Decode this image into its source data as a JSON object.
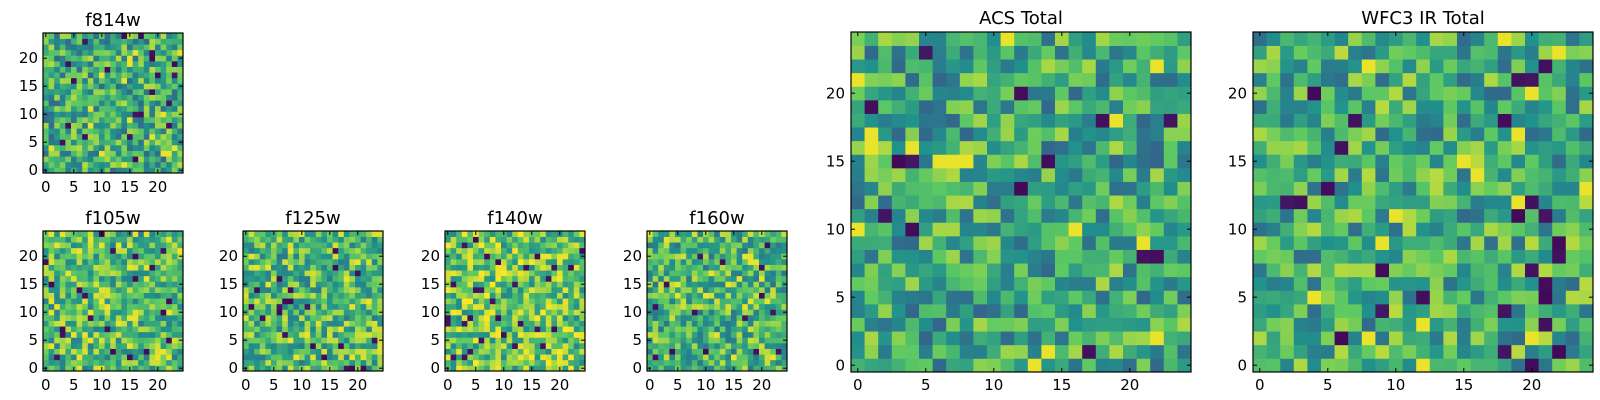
{
  "colors": {
    "colormap": "viridis",
    "stops": [
      "#440154",
      "#3b528b",
      "#21918c",
      "#5ec962",
      "#fde725"
    ]
  },
  "chart_data": [
    {
      "type": "heatmap",
      "title": "f814w",
      "grid": false,
      "shape": [
        25,
        25
      ],
      "value_range": [
        0,
        1
      ],
      "mean_level": 0.62,
      "xlim": [
        -0.5,
        24.5
      ],
      "ylim": [
        -0.5,
        24.5
      ],
      "xticks": [
        0,
        5,
        10,
        15,
        20
      ],
      "yticks": [
        0,
        5,
        10,
        15,
        20
      ],
      "xticklabels": [
        "0",
        "5",
        "10",
        "15",
        "20"
      ],
      "yticklabels": [
        "0",
        "5",
        "10",
        "15",
        "20"
      ]
    },
    {
      "type": "heatmap",
      "title": "f105w",
      "grid": false,
      "shape": [
        25,
        25
      ],
      "value_range": [
        0,
        1
      ],
      "mean_level": 0.7,
      "xlim": [
        -0.5,
        24.5
      ],
      "ylim": [
        -0.5,
        24.5
      ],
      "xticks": [
        0,
        5,
        10,
        15,
        20
      ],
      "yticks": [
        0,
        5,
        10,
        15,
        20
      ],
      "xticklabels": [
        "0",
        "5",
        "10",
        "15",
        "20"
      ],
      "yticklabels": [
        "0",
        "5",
        "10",
        "15",
        "20"
      ]
    },
    {
      "type": "heatmap",
      "title": "f125w",
      "grid": false,
      "shape": [
        25,
        25
      ],
      "value_range": [
        0,
        1
      ],
      "mean_level": 0.68,
      "xlim": [
        -0.5,
        24.5
      ],
      "ylim": [
        -0.5,
        24.5
      ],
      "xticks": [
        0,
        5,
        10,
        15,
        20
      ],
      "yticks": [
        0,
        5,
        10,
        15,
        20
      ],
      "xticklabels": [
        "0",
        "5",
        "10",
        "15",
        "20"
      ],
      "yticklabels": [
        "0",
        "5",
        "10",
        "15",
        "20"
      ]
    },
    {
      "type": "heatmap",
      "title": "f140w",
      "grid": false,
      "shape": [
        25,
        25
      ],
      "value_range": [
        0,
        1
      ],
      "mean_level": 0.74,
      "xlim": [
        -0.5,
        24.5
      ],
      "ylim": [
        -0.5,
        24.5
      ],
      "xticks": [
        0,
        5,
        10,
        15,
        20
      ],
      "yticks": [
        0,
        5,
        10,
        15,
        20
      ],
      "xticklabels": [
        "0",
        "5",
        "10",
        "15",
        "20"
      ],
      "yticklabels": [
        "0",
        "5",
        "10",
        "15",
        "20"
      ]
    },
    {
      "type": "heatmap",
      "title": "f160w",
      "grid": false,
      "shape": [
        25,
        25
      ],
      "value_range": [
        0,
        1
      ],
      "mean_level": 0.66,
      "xlim": [
        -0.5,
        24.5
      ],
      "ylim": [
        -0.5,
        24.5
      ],
      "xticks": [
        0,
        5,
        10,
        15,
        20
      ],
      "yticks": [
        0,
        5,
        10,
        15,
        20
      ],
      "xticklabels": [
        "0",
        "5",
        "10",
        "15",
        "20"
      ],
      "yticklabels": [
        "0",
        "5",
        "10",
        "15",
        "20"
      ]
    },
    {
      "type": "heatmap",
      "title": "ACS Total",
      "grid": false,
      "shape": [
        25,
        25
      ],
      "value_range": [
        0,
        1
      ],
      "mean_level": 0.6,
      "xlim": [
        -0.5,
        24.5
      ],
      "ylim": [
        -0.5,
        24.5
      ],
      "xticks": [
        0,
        5,
        10,
        15,
        20
      ],
      "yticks": [
        0,
        5,
        10,
        15,
        20
      ],
      "xticklabels": [
        "0",
        "5",
        "10",
        "15",
        "20"
      ],
      "yticklabels": [
        "0",
        "5",
        "10",
        "15",
        "20"
      ]
    },
    {
      "type": "heatmap",
      "title": "WFC3 IR Total",
      "grid": false,
      "shape": [
        25,
        25
      ],
      "value_range": [
        0,
        1
      ],
      "mean_level": 0.62,
      "xlim": [
        -0.5,
        24.5
      ],
      "ylim": [
        -0.5,
        24.5
      ],
      "xticks": [
        0,
        5,
        10,
        15,
        20
      ],
      "yticks": [
        0,
        5,
        10,
        15,
        20
      ],
      "xticklabels": [
        "0",
        "5",
        "10",
        "15",
        "20"
      ],
      "yticklabels": [
        "0",
        "5",
        "10",
        "15",
        "20"
      ]
    }
  ]
}
